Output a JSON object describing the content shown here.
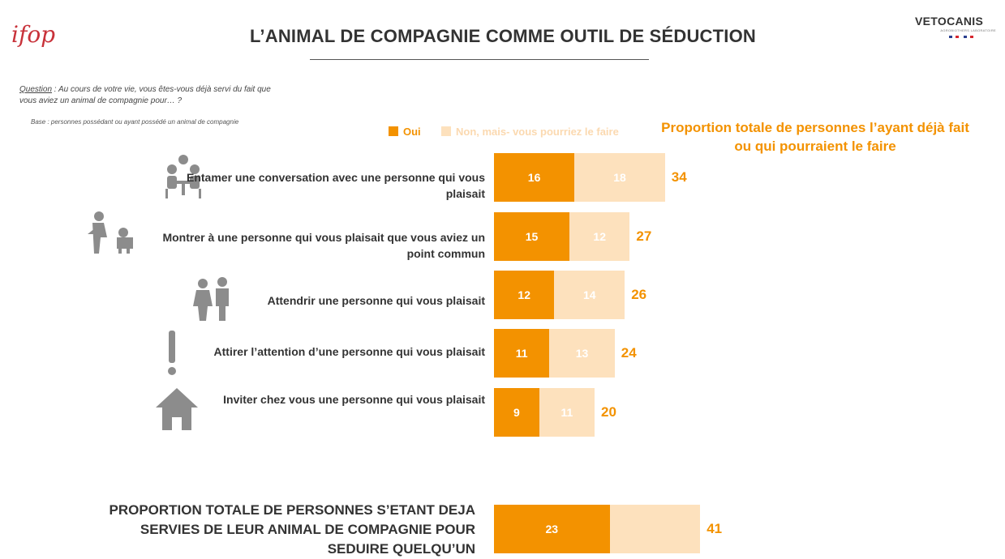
{
  "header": {
    "title": "L’ANIMAL DE COMPAGNIE COMME OUTIL DE SÉDUCTION",
    "logo_left": "ifop",
    "brand_name": "VETOCANIS",
    "brand_sub": "AGROBIOTHERS LABORATOIRE"
  },
  "question": {
    "label": "Question",
    "text": " : Au cours de votre vie, vous êtes-vous déjà servi du fait que vous aviez un animal de compagnie pour… ?",
    "base": "Base : personnes possédant ou ayant possédé un animal de compagnie"
  },
  "legend": {
    "oui": "Oui",
    "non": "Non, mais- vous pourriez le faire"
  },
  "total_header": "Proportion totale de personnes l’ayant déjà fait ou qui pourraient le faire",
  "colors": {
    "oui": "#f39200",
    "non": "#fde1bd",
    "accent": "#f39200",
    "text": "#333333",
    "icon": "#8c8c8c"
  },
  "chart_data": {
    "type": "bar",
    "orientation": "horizontal",
    "stacked": true,
    "categories": [
      "Entamer une conversation avec une personne qui vous plaisait",
      "Montrer à une personne qui vous plaisait que vous aviez un point commun",
      "Attendrir une personne qui vous plaisait",
      "Attirer l’attention d’une personne qui vous plaisait",
      "Inviter chez vous une personne qui vous plaisait"
    ],
    "category_icons": [
      "meeting-icon",
      "person-with-dog-icon",
      "couple-icon",
      "exclamation-icon",
      "house-icon"
    ],
    "series": [
      {
        "name": "Oui",
        "values": [
          16,
          15,
          12,
          11,
          9
        ]
      },
      {
        "name": "Non, mais- vous pourriez le faire",
        "values": [
          18,
          12,
          14,
          13,
          11
        ]
      }
    ],
    "totals": [
      34,
      27,
      26,
      24,
      20
    ],
    "summary": {
      "label": "PROPORTION TOTALE DE PERSONNES S’ETANT DEJA SERVIES DE LEUR ANIMAL DE COMPAGNIE POUR SEDUIRE QUELQU’UN",
      "oui": 23,
      "total": 41
    }
  }
}
